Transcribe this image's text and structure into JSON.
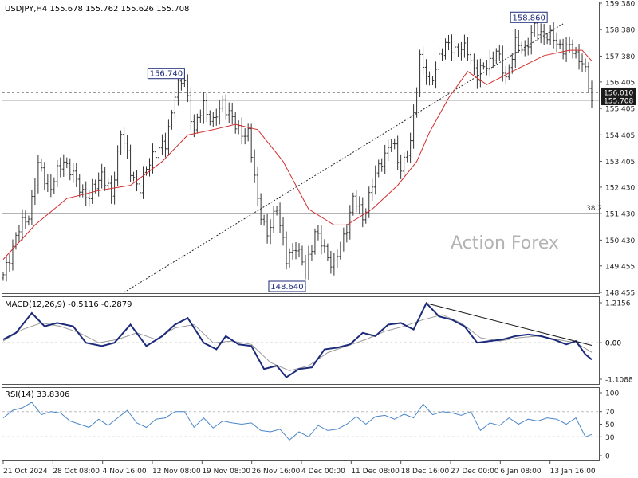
{
  "header": {
    "price_info": "USDJPY,H4  155.678 155.762 155.626 155.708",
    "watermark": "Action Forex"
  },
  "colors": {
    "candles": "#333333",
    "ma": "#d42b2b",
    "macd_line": "#1c2a7a",
    "macd_signal": "#9a9a9a",
    "rsi": "#4a86c8",
    "price_tag_bg": "#1c1c1c",
    "callout_border": "#1c2a7a",
    "callout_text": "#1c2a7a"
  },
  "chart_data": [
    {
      "type": "candlestick",
      "symbol": "USDJPY",
      "timeframe": "H4",
      "ylim": [
        148.455,
        159.38
      ],
      "y_ticks": [
        "159.380",
        "158.380",
        "157.380",
        "156.405",
        "155.405",
        "154.405",
        "153.405",
        "152.430",
        "151.430",
        "150.430",
        "149.455",
        "148.455"
      ],
      "x_labels": [
        "21 Oct 2024",
        "28 Oct 08:00",
        "4 Nov 16:00",
        "12 Nov 08:00",
        "19 Nov 08:00",
        "26 Nov 16:00",
        "4 Dec 00:00",
        "11 Dec 08:00",
        "18 Dec 16:00",
        "27 Dec 00:00",
        "6 Jan 08:00",
        "13 Jan 16:00"
      ],
      "close_path": [
        {
          "x": 0,
          "y": 149.0
        },
        {
          "x": 4,
          "y": 150.6
        },
        {
          "x": 8,
          "y": 151.4
        },
        {
          "x": 11,
          "y": 153.2
        },
        {
          "x": 15,
          "y": 152.4
        },
        {
          "x": 19,
          "y": 153.5
        },
        {
          "x": 23,
          "y": 152.6
        },
        {
          "x": 27,
          "y": 152.0
        },
        {
          "x": 31,
          "y": 153.0
        },
        {
          "x": 34,
          "y": 152.0
        },
        {
          "x": 37,
          "y": 154.6
        },
        {
          "x": 40,
          "y": 153.0
        },
        {
          "x": 43,
          "y": 152.4
        },
        {
          "x": 47,
          "y": 153.7
        },
        {
          "x": 51,
          "y": 154.0
        },
        {
          "x": 54,
          "y": 156.0
        },
        {
          "x": 57,
          "y": 156.5
        },
        {
          "x": 60,
          "y": 154.5
        },
        {
          "x": 63,
          "y": 155.6
        },
        {
          "x": 66,
          "y": 154.8
        },
        {
          "x": 69,
          "y": 155.7
        },
        {
          "x": 73,
          "y": 154.7
        },
        {
          "x": 77,
          "y": 154.4
        },
        {
          "x": 80,
          "y": 152.0
        },
        {
          "x": 83,
          "y": 150.5
        },
        {
          "x": 86,
          "y": 151.8
        },
        {
          "x": 89,
          "y": 149.6
        },
        {
          "x": 92,
          "y": 150.3
        },
        {
          "x": 95,
          "y": 149.2
        },
        {
          "x": 98,
          "y": 150.8
        },
        {
          "x": 101,
          "y": 150.0
        },
        {
          "x": 104,
          "y": 149.5
        },
        {
          "x": 107,
          "y": 150.5
        },
        {
          "x": 110,
          "y": 152.0
        },
        {
          "x": 113,
          "y": 151.3
        },
        {
          "x": 116,
          "y": 152.5
        },
        {
          "x": 119,
          "y": 153.5
        },
        {
          "x": 122,
          "y": 154.1
        },
        {
          "x": 125,
          "y": 153.2
        },
        {
          "x": 128,
          "y": 154.0
        },
        {
          "x": 131,
          "y": 157.4
        },
        {
          "x": 134,
          "y": 156.2
        },
        {
          "x": 137,
          "y": 157.4
        },
        {
          "x": 140,
          "y": 157.8
        },
        {
          "x": 143,
          "y": 157.6
        },
        {
          "x": 146,
          "y": 157.6
        },
        {
          "x": 149,
          "y": 156.6
        },
        {
          "x": 152,
          "y": 157.1
        },
        {
          "x": 155,
          "y": 157.5
        },
        {
          "x": 158,
          "y": 156.6
        },
        {
          "x": 161,
          "y": 157.8
        },
        {
          "x": 164,
          "y": 157.7
        },
        {
          "x": 167,
          "y": 158.4
        },
        {
          "x": 170,
          "y": 158.2
        },
        {
          "x": 173,
          "y": 158.0
        },
        {
          "x": 176,
          "y": 157.7
        },
        {
          "x": 179,
          "y": 157.6
        },
        {
          "x": 182,
          "y": 157.2
        },
        {
          "x": 185,
          "y": 155.7
        }
      ],
      "ma_path": [
        {
          "x": 0,
          "y": 149.7
        },
        {
          "x": 10,
          "y": 151.0
        },
        {
          "x": 20,
          "y": 152.0
        },
        {
          "x": 30,
          "y": 152.3
        },
        {
          "x": 40,
          "y": 152.5
        },
        {
          "x": 50,
          "y": 153.4
        },
        {
          "x": 58,
          "y": 154.4
        },
        {
          "x": 66,
          "y": 154.6
        },
        {
          "x": 73,
          "y": 154.8
        },
        {
          "x": 80,
          "y": 154.6
        },
        {
          "x": 88,
          "y": 153.4
        },
        {
          "x": 96,
          "y": 151.6
        },
        {
          "x": 104,
          "y": 151.0
        },
        {
          "x": 108,
          "y": 151.0
        },
        {
          "x": 116,
          "y": 151.6
        },
        {
          "x": 124,
          "y": 152.5
        },
        {
          "x": 130,
          "y": 153.4
        },
        {
          "x": 134,
          "y": 154.5
        },
        {
          "x": 140,
          "y": 155.8
        },
        {
          "x": 146,
          "y": 156.8
        },
        {
          "x": 152,
          "y": 156.3
        },
        {
          "x": 160,
          "y": 156.8
        },
        {
          "x": 170,
          "y": 157.4
        },
        {
          "x": 178,
          "y": 157.6
        },
        {
          "x": 182,
          "y": 157.6
        },
        {
          "x": 185,
          "y": 157.2
        }
      ],
      "hlines": [
        {
          "label": "156.010",
          "value": 156.01,
          "style": "dashed"
        },
        {
          "label": "155.708",
          "value": 155.708,
          "style": "solid-gray"
        },
        {
          "label": "38.2",
          "value": 151.43,
          "style": "solid"
        }
      ],
      "trendline": {
        "from": {
          "x": 38,
          "y": 148.455
        },
        "to": {
          "x": 176,
          "y": 158.6
        }
      },
      "callouts": [
        {
          "label": "156.740",
          "x": 57,
          "y": 156.74
        },
        {
          "label": "148.640",
          "x": 95,
          "y": 148.64
        },
        {
          "label": "158.860",
          "x": 171,
          "y": 158.86
        }
      ]
    },
    {
      "type": "line",
      "title": "MACD(12,26,9) -0.5116 -0.2879",
      "ylim": [
        -1.1088,
        1.2156
      ],
      "y_ticks": [
        "1.2156",
        "0.00",
        "0.00",
        "-1.1088"
      ],
      "zero_value": 0.0,
      "series": [
        {
          "name": "MACD",
          "points": [
            {
              "x": 0,
              "y": 0.1
            },
            {
              "x": 4,
              "y": 0.3
            },
            {
              "x": 9,
              "y": 0.9
            },
            {
              "x": 13,
              "y": 0.5
            },
            {
              "x": 17,
              "y": 0.6
            },
            {
              "x": 22,
              "y": 0.5
            },
            {
              "x": 26,
              "y": 0.0
            },
            {
              "x": 31,
              "y": -0.1
            },
            {
              "x": 35,
              "y": 0.0
            },
            {
              "x": 40,
              "y": 0.55
            },
            {
              "x": 45,
              "y": -0.1
            },
            {
              "x": 50,
              "y": 0.2
            },
            {
              "x": 54,
              "y": 0.55
            },
            {
              "x": 58,
              "y": 0.75
            },
            {
              "x": 63,
              "y": 0.0
            },
            {
              "x": 67,
              "y": -0.2
            },
            {
              "x": 70,
              "y": 0.2
            },
            {
              "x": 74,
              "y": -0.05
            },
            {
              "x": 78,
              "y": -0.1
            },
            {
              "x": 82,
              "y": -0.8
            },
            {
              "x": 86,
              "y": -0.7
            },
            {
              "x": 89,
              "y": -1.05
            },
            {
              "x": 93,
              "y": -0.8
            },
            {
              "x": 97,
              "y": -0.75
            },
            {
              "x": 101,
              "y": -0.2
            },
            {
              "x": 105,
              "y": -0.15
            },
            {
              "x": 109,
              "y": -0.05
            },
            {
              "x": 113,
              "y": 0.3
            },
            {
              "x": 117,
              "y": 0.2
            },
            {
              "x": 121,
              "y": 0.55
            },
            {
              "x": 125,
              "y": 0.6
            },
            {
              "x": 129,
              "y": 0.4
            },
            {
              "x": 133,
              "y": 1.2
            },
            {
              "x": 137,
              "y": 0.8
            },
            {
              "x": 141,
              "y": 0.7
            },
            {
              "x": 145,
              "y": 0.5
            },
            {
              "x": 149,
              "y": 0.0
            },
            {
              "x": 153,
              "y": 0.05
            },
            {
              "x": 157,
              "y": 0.1
            },
            {
              "x": 161,
              "y": 0.2
            },
            {
              "x": 165,
              "y": 0.25
            },
            {
              "x": 169,
              "y": 0.2
            },
            {
              "x": 173,
              "y": 0.1
            },
            {
              "x": 177,
              "y": -0.05
            },
            {
              "x": 180,
              "y": 0.05
            },
            {
              "x": 183,
              "y": -0.35
            },
            {
              "x": 185,
              "y": -0.51
            }
          ]
        },
        {
          "name": "Signal",
          "points": [
            {
              "x": 0,
              "y": 0.05
            },
            {
              "x": 6,
              "y": 0.4
            },
            {
              "x": 12,
              "y": 0.6
            },
            {
              "x": 18,
              "y": 0.5
            },
            {
              "x": 24,
              "y": 0.3
            },
            {
              "x": 30,
              "y": 0.0
            },
            {
              "x": 36,
              "y": 0.1
            },
            {
              "x": 42,
              "y": 0.3
            },
            {
              "x": 48,
              "y": 0.1
            },
            {
              "x": 54,
              "y": 0.45
            },
            {
              "x": 60,
              "y": 0.55
            },
            {
              "x": 66,
              "y": 0.0
            },
            {
              "x": 72,
              "y": 0.05
            },
            {
              "x": 78,
              "y": -0.05
            },
            {
              "x": 84,
              "y": -0.6
            },
            {
              "x": 90,
              "y": -0.85
            },
            {
              "x": 96,
              "y": -0.7
            },
            {
              "x": 102,
              "y": -0.3
            },
            {
              "x": 108,
              "y": -0.1
            },
            {
              "x": 114,
              "y": 0.1
            },
            {
              "x": 120,
              "y": 0.35
            },
            {
              "x": 126,
              "y": 0.5
            },
            {
              "x": 132,
              "y": 0.7
            },
            {
              "x": 138,
              "y": 0.85
            },
            {
              "x": 144,
              "y": 0.6
            },
            {
              "x": 150,
              "y": 0.15
            },
            {
              "x": 156,
              "y": 0.05
            },
            {
              "x": 162,
              "y": 0.15
            },
            {
              "x": 168,
              "y": 0.2
            },
            {
              "x": 174,
              "y": 0.1
            },
            {
              "x": 180,
              "y": 0.0
            },
            {
              "x": 185,
              "y": -0.29
            }
          ]
        }
      ],
      "trendline": {
        "from": {
          "x": 133,
          "y": 1.2
        },
        "to": {
          "x": 185,
          "y": -0.08
        }
      }
    },
    {
      "type": "line",
      "title": "RSI(14) 33.8306",
      "ylim": [
        0,
        100
      ],
      "y_ticks": [
        "100",
        "70",
        "50",
        "30",
        "0"
      ],
      "levels": [
        70,
        30
      ],
      "series": [
        {
          "name": "RSI",
          "points": [
            {
              "x": 0,
              "y": 60
            },
            {
              "x": 3,
              "y": 72
            },
            {
              "x": 6,
              "y": 76
            },
            {
              "x": 9,
              "y": 85
            },
            {
              "x": 12,
              "y": 65
            },
            {
              "x": 15,
              "y": 70
            },
            {
              "x": 18,
              "y": 68
            },
            {
              "x": 21,
              "y": 55
            },
            {
              "x": 24,
              "y": 50
            },
            {
              "x": 27,
              "y": 45
            },
            {
              "x": 30,
              "y": 58
            },
            {
              "x": 33,
              "y": 48
            },
            {
              "x": 36,
              "y": 60
            },
            {
              "x": 39,
              "y": 72
            },
            {
              "x": 42,
              "y": 52
            },
            {
              "x": 45,
              "y": 45
            },
            {
              "x": 48,
              "y": 58
            },
            {
              "x": 51,
              "y": 60
            },
            {
              "x": 54,
              "y": 70
            },
            {
              "x": 57,
              "y": 70
            },
            {
              "x": 60,
              "y": 45
            },
            {
              "x": 63,
              "y": 60
            },
            {
              "x": 66,
              "y": 44
            },
            {
              "x": 69,
              "y": 55
            },
            {
              "x": 72,
              "y": 52
            },
            {
              "x": 75,
              "y": 50
            },
            {
              "x": 78,
              "y": 52
            },
            {
              "x": 81,
              "y": 40
            },
            {
              "x": 84,
              "y": 38
            },
            {
              "x": 87,
              "y": 42
            },
            {
              "x": 90,
              "y": 25
            },
            {
              "x": 93,
              "y": 38
            },
            {
              "x": 96,
              "y": 30
            },
            {
              "x": 99,
              "y": 48
            },
            {
              "x": 102,
              "y": 40
            },
            {
              "x": 105,
              "y": 42
            },
            {
              "x": 108,
              "y": 50
            },
            {
              "x": 111,
              "y": 62
            },
            {
              "x": 114,
              "y": 50
            },
            {
              "x": 117,
              "y": 62
            },
            {
              "x": 120,
              "y": 64
            },
            {
              "x": 123,
              "y": 58
            },
            {
              "x": 126,
              "y": 66
            },
            {
              "x": 129,
              "y": 60
            },
            {
              "x": 132,
              "y": 82
            },
            {
              "x": 135,
              "y": 65
            },
            {
              "x": 138,
              "y": 70
            },
            {
              "x": 141,
              "y": 68
            },
            {
              "x": 144,
              "y": 64
            },
            {
              "x": 147,
              "y": 70
            },
            {
              "x": 150,
              "y": 40
            },
            {
              "x": 153,
              "y": 52
            },
            {
              "x": 156,
              "y": 48
            },
            {
              "x": 159,
              "y": 60
            },
            {
              "x": 162,
              "y": 50
            },
            {
              "x": 165,
              "y": 58
            },
            {
              "x": 168,
              "y": 55
            },
            {
              "x": 171,
              "y": 60
            },
            {
              "x": 174,
              "y": 58
            },
            {
              "x": 177,
              "y": 50
            },
            {
              "x": 180,
              "y": 60
            },
            {
              "x": 183,
              "y": 30
            },
            {
              "x": 185,
              "y": 33.8
            }
          ]
        }
      ]
    }
  ]
}
